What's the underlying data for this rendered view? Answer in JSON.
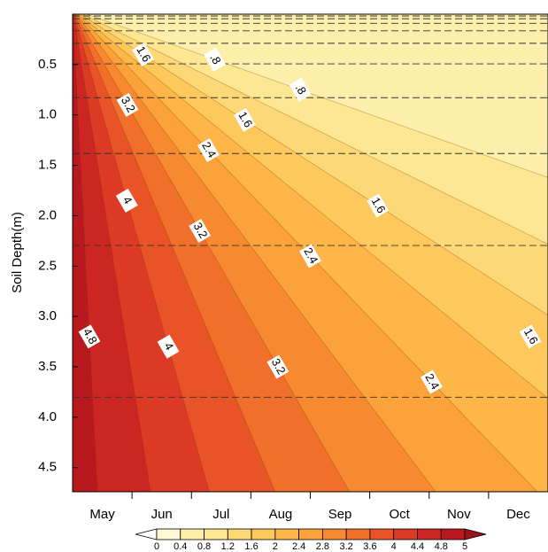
{
  "chart_data": {
    "type": "contour",
    "ylabel": "Soil Depth(m)",
    "categories": [
      "May",
      "Jun",
      "Jul",
      "Aug",
      "Sep",
      "Oct",
      "Nov",
      "Dec"
    ],
    "ylim": [
      0,
      4.74
    ],
    "y_inverted": true,
    "yticks": [
      {
        "value": 0.5,
        "label": "0.5"
      },
      {
        "value": 1.0,
        "label": "1.0"
      },
      {
        "value": 1.5,
        "label": "1.5"
      },
      {
        "value": 2.0,
        "label": "2.0"
      },
      {
        "value": 2.5,
        "label": "2.5"
      },
      {
        "value": 3.0,
        "label": "3.0"
      },
      {
        "value": 3.5,
        "label": "3.5"
      },
      {
        "value": 4.0,
        "label": "4.0"
      },
      {
        "value": 4.5,
        "label": "4.5"
      }
    ],
    "levels": [
      0,
      0.4,
      0.8,
      1.2,
      1.6,
      2,
      2.4,
      2.8,
      3.2,
      3.6,
      4,
      4.4,
      4.8,
      5
    ],
    "colors": [
      "#ffffff",
      "#fff8d2",
      "#fef0ac",
      "#fde792",
      "#fdd876",
      "#fdc85c",
      "#fdb647",
      "#fba23a",
      "#f78a31",
      "#f06f2a",
      "#e85427",
      "#dc3a25",
      "#cc2622",
      "#b8191f",
      "#9c141b"
    ],
    "contour_labels": [
      1.6,
      {
        "value": 0.8,
        "label": ".8"
      },
      {
        "value": 0.8,
        "label": ".8"
      },
      3.2,
      1.6,
      2.4,
      4,
      1.6,
      3.2,
      2.4,
      4.8,
      4,
      3.2,
      2.4,
      1.6
    ],
    "layer_interfaces": [
      0.0175,
      0.0451,
      0.0906,
      0.1655,
      0.2891,
      0.4929,
      0.8289,
      1.3828,
      2.2961,
      3.8019
    ]
  }
}
